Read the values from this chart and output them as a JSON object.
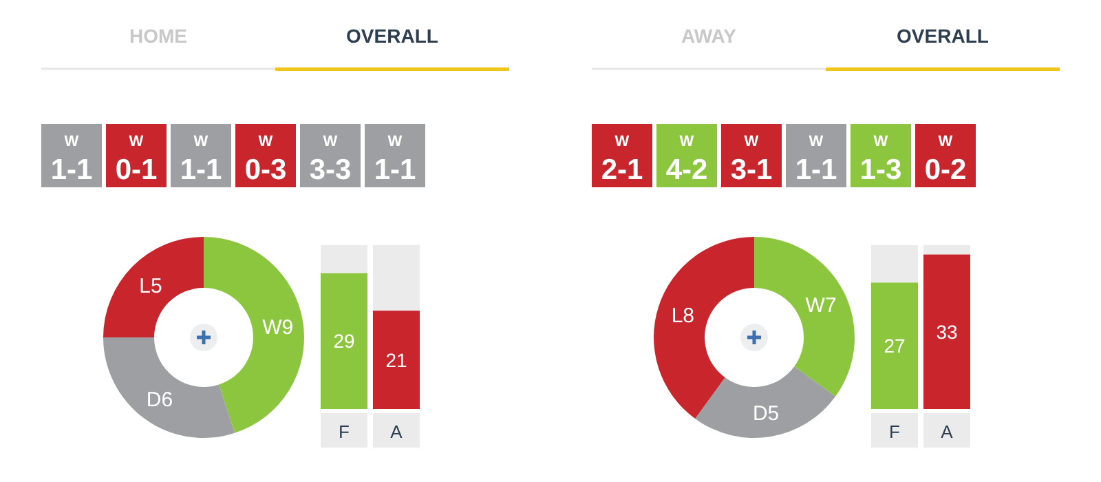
{
  "chart_data": [
    {
      "type": "other",
      "annotations": [
        "HOME",
        "OVERALL"
      ],
      "categories": [
        "W 1-1",
        "W 0-1",
        "W 1-1",
        "W 0-3",
        "W 3-3",
        "W 1-1"
      ],
      "colors": [
        "#9d9fa2",
        "#c9252c",
        "#9d9fa2",
        "#c9252c",
        "#9d9fa2",
        "#9d9fa2"
      ]
    },
    {
      "type": "donut",
      "categories": [
        "W9",
        "D6",
        "L5"
      ],
      "values": [
        9,
        6,
        5
      ],
      "colors": [
        "#8cc63f",
        "#9d9fa2",
        "#c9252c"
      ]
    },
    {
      "type": "bar",
      "categories": [
        "F",
        "A"
      ],
      "values": [
        29,
        21
      ],
      "colors": [
        "#8cc63f",
        "#c9252c"
      ],
      "ylim": [
        0,
        35
      ],
      "data_labels": true,
      "tick_labels": "x"
    },
    {
      "type": "other",
      "annotations": [
        "AWAY",
        "OVERALL"
      ],
      "categories": [
        "W 2-1",
        "W 4-2",
        "W 3-1",
        "W 1-1",
        "W 1-3",
        "W 0-2"
      ],
      "colors": [
        "#c9252c",
        "#8cc63f",
        "#c9252c",
        "#9d9fa2",
        "#8cc63f",
        "#c9252c"
      ]
    },
    {
      "type": "donut",
      "categories": [
        "W7",
        "D5",
        "L8"
      ],
      "values": [
        7,
        5,
        8
      ],
      "colors": [
        "#8cc63f",
        "#9d9fa2",
        "#c9252c"
      ]
    },
    {
      "type": "bar",
      "categories": [
        "F",
        "A"
      ],
      "values": [
        27,
        33
      ],
      "colors": [
        "#8cc63f",
        "#c9252c"
      ],
      "ylim": [
        0,
        35
      ],
      "data_labels": true,
      "tick_labels": "x"
    }
  ]
}
